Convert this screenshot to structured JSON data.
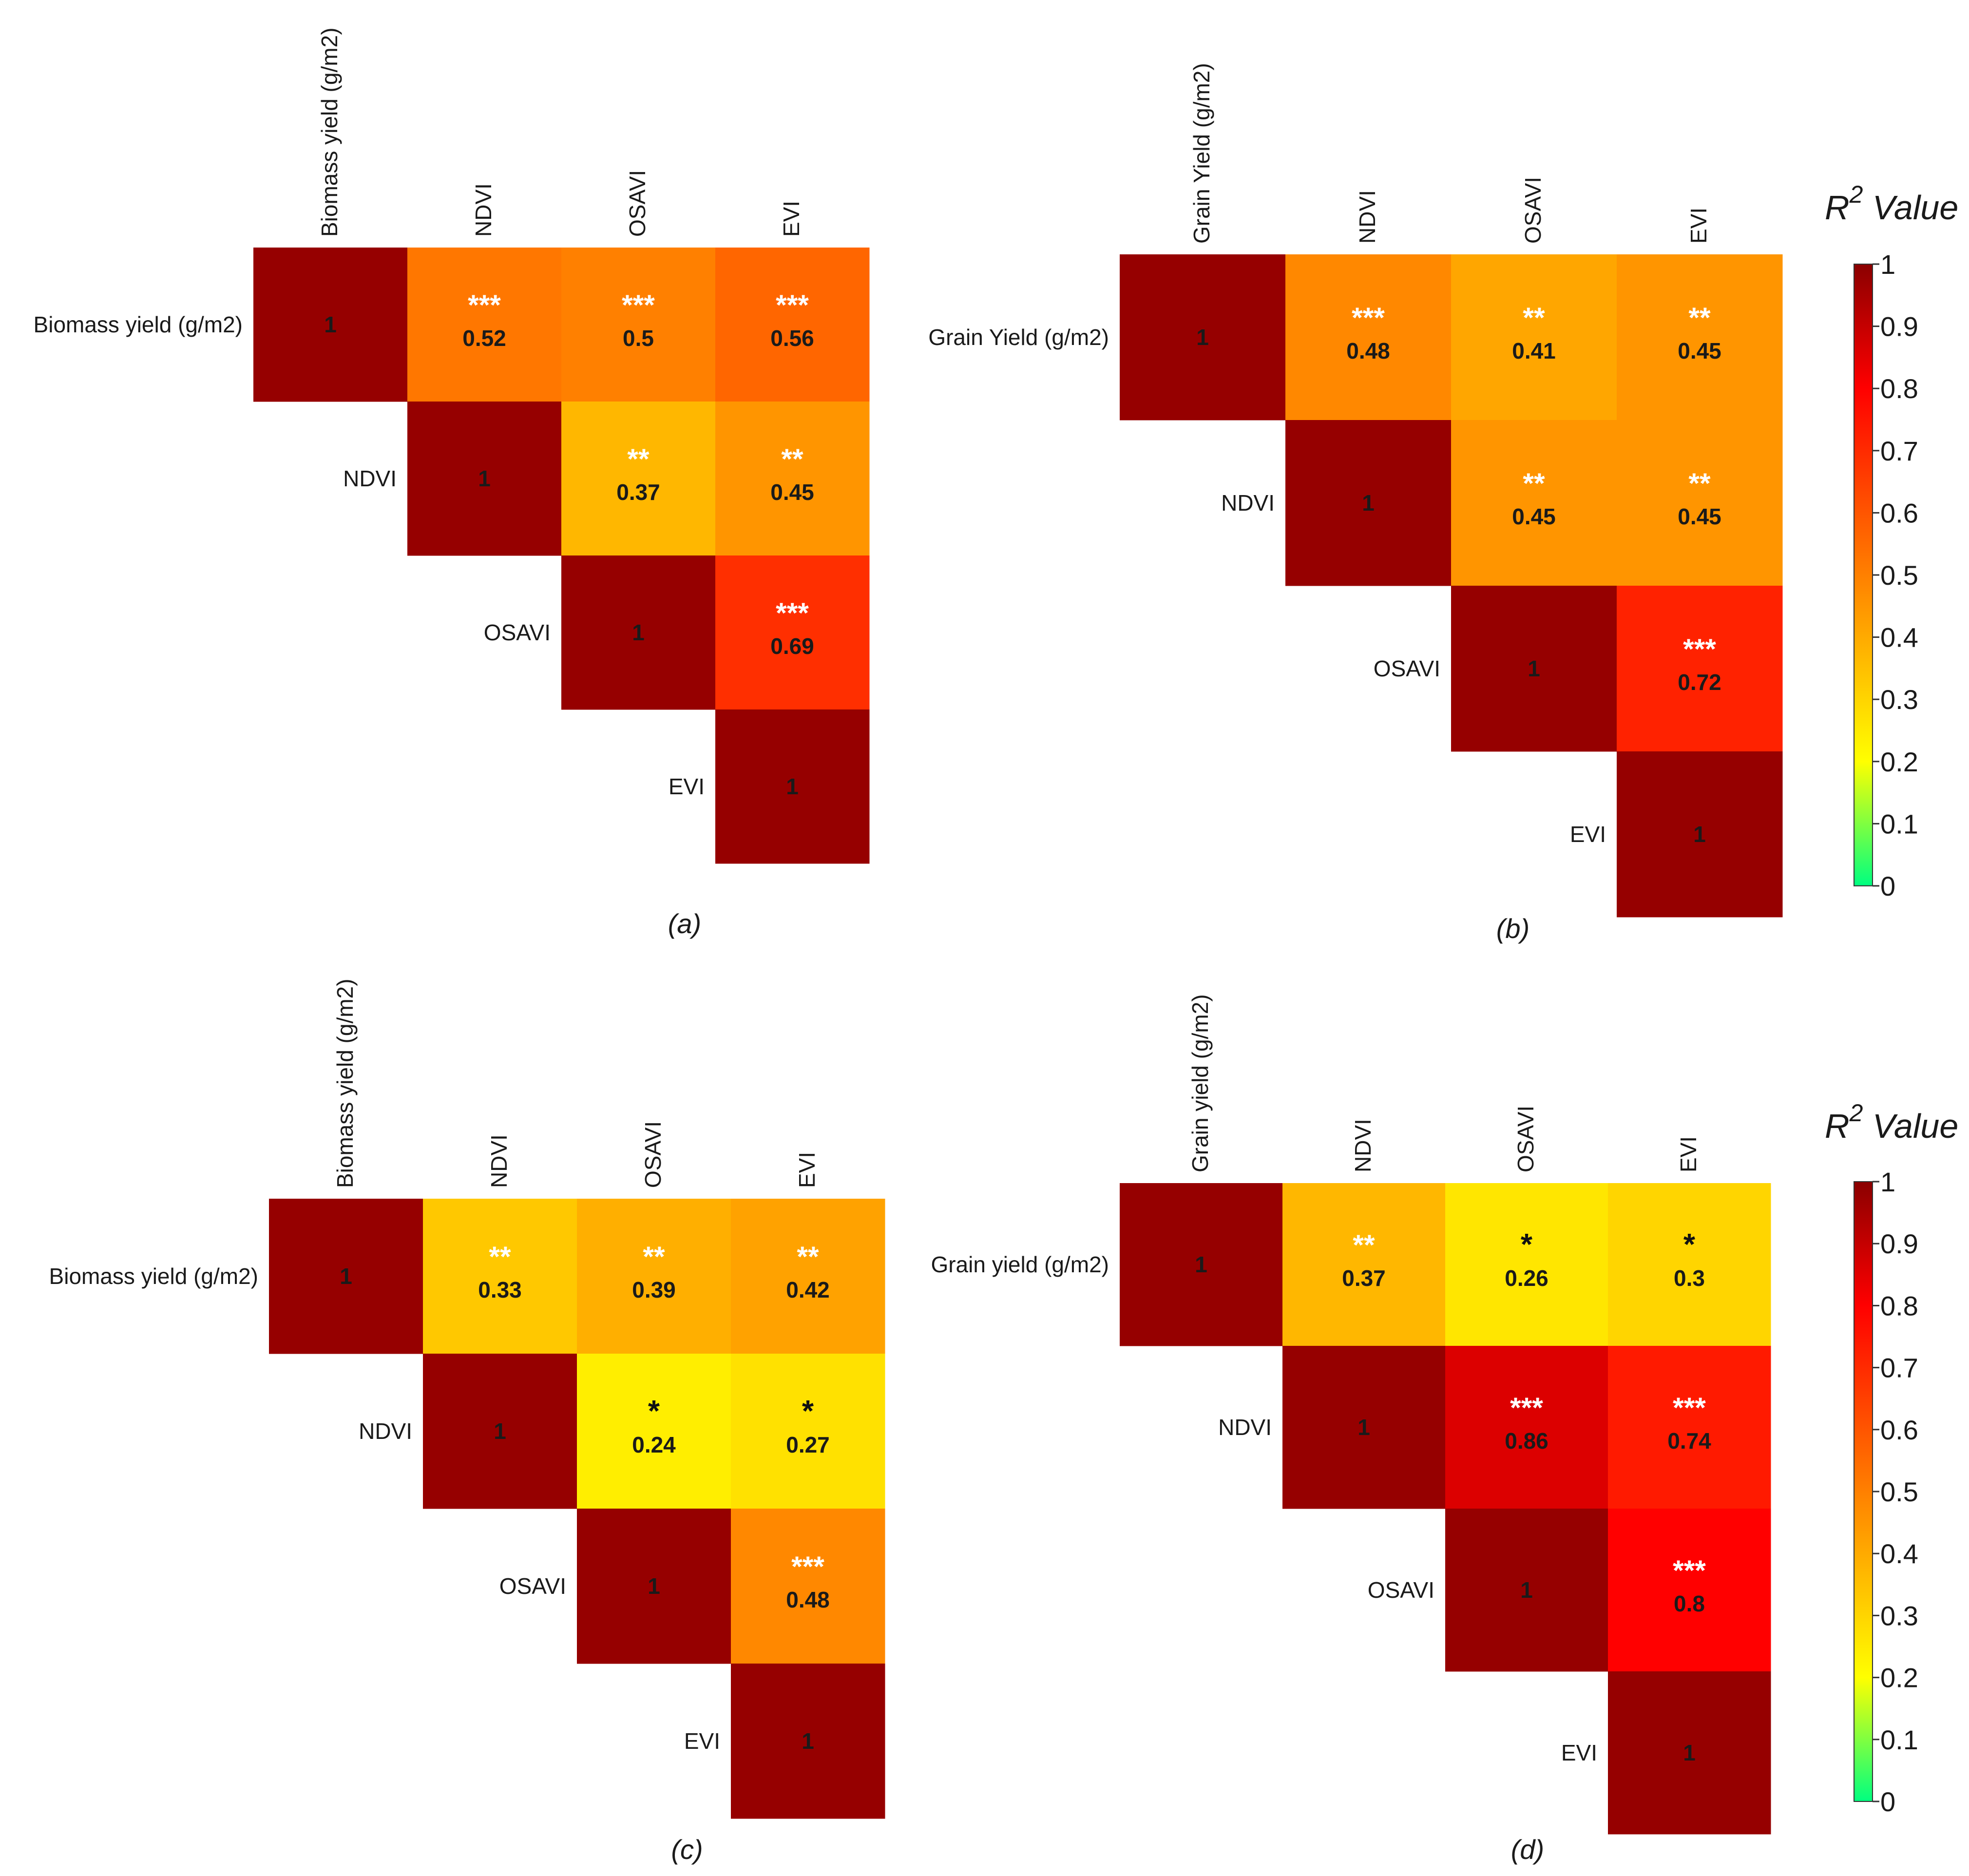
{
  "chart_data": [
    {
      "type": "heatmap",
      "panel_label": "(a)",
      "variables": [
        "Biomass yield (g/m2)",
        "NDVI",
        "OSAVI",
        "EVI"
      ],
      "cells": [
        {
          "row": 0,
          "col": 0,
          "value": 1,
          "value_label": "1",
          "stars": ""
        },
        {
          "row": 0,
          "col": 1,
          "value": 0.52,
          "value_label": "0.52",
          "stars": "***"
        },
        {
          "row": 0,
          "col": 2,
          "value": 0.5,
          "value_label": "0.5",
          "stars": "***"
        },
        {
          "row": 0,
          "col": 3,
          "value": 0.56,
          "value_label": "0.56",
          "stars": "***"
        },
        {
          "row": 1,
          "col": 1,
          "value": 1,
          "value_label": "1",
          "stars": ""
        },
        {
          "row": 1,
          "col": 2,
          "value": 0.37,
          "value_label": "0.37",
          "stars": "**"
        },
        {
          "row": 1,
          "col": 3,
          "value": 0.45,
          "value_label": "0.45",
          "stars": "**"
        },
        {
          "row": 2,
          "col": 2,
          "value": 1,
          "value_label": "1",
          "stars": ""
        },
        {
          "row": 2,
          "col": 3,
          "value": 0.69,
          "value_label": "0.69",
          "stars": "***"
        },
        {
          "row": 3,
          "col": 3,
          "value": 1,
          "value_label": "1",
          "stars": ""
        }
      ]
    },
    {
      "type": "heatmap",
      "panel_label": "(b)",
      "variables": [
        "Grain Yield (g/m2)",
        "NDVI",
        "OSAVI",
        "EVI"
      ],
      "cells": [
        {
          "row": 0,
          "col": 0,
          "value": 1,
          "value_label": "1",
          "stars": ""
        },
        {
          "row": 0,
          "col": 1,
          "value": 0.48,
          "value_label": "0.48",
          "stars": "***"
        },
        {
          "row": 0,
          "col": 2,
          "value": 0.41,
          "value_label": "0.41",
          "stars": "**"
        },
        {
          "row": 0,
          "col": 3,
          "value": 0.45,
          "value_label": "0.45",
          "stars": "**"
        },
        {
          "row": 1,
          "col": 1,
          "value": 1,
          "value_label": "1",
          "stars": ""
        },
        {
          "row": 1,
          "col": 2,
          "value": 0.45,
          "value_label": "0.45",
          "stars": "**"
        },
        {
          "row": 1,
          "col": 3,
          "value": 0.45,
          "value_label": "0.45",
          "stars": "**"
        },
        {
          "row": 2,
          "col": 2,
          "value": 1,
          "value_label": "1",
          "stars": ""
        },
        {
          "row": 2,
          "col": 3,
          "value": 0.72,
          "value_label": "0.72",
          "stars": "***"
        },
        {
          "row": 3,
          "col": 3,
          "value": 1,
          "value_label": "1",
          "stars": ""
        }
      ]
    },
    {
      "type": "heatmap",
      "panel_label": "(c)",
      "variables": [
        "Biomass yield (g/m2)",
        "NDVI",
        "OSAVI",
        "EVI"
      ],
      "cells": [
        {
          "row": 0,
          "col": 0,
          "value": 1,
          "value_label": "1",
          "stars": ""
        },
        {
          "row": 0,
          "col": 1,
          "value": 0.33,
          "value_label": "0.33",
          "stars": "**"
        },
        {
          "row": 0,
          "col": 2,
          "value": 0.39,
          "value_label": "0.39",
          "stars": "**"
        },
        {
          "row": 0,
          "col": 3,
          "value": 0.42,
          "value_label": "0.42",
          "stars": "**"
        },
        {
          "row": 1,
          "col": 1,
          "value": 1,
          "value_label": "1",
          "stars": ""
        },
        {
          "row": 1,
          "col": 2,
          "value": 0.24,
          "value_label": "0.24",
          "stars": "*"
        },
        {
          "row": 1,
          "col": 3,
          "value": 0.27,
          "value_label": "0.27",
          "stars": "*"
        },
        {
          "row": 2,
          "col": 2,
          "value": 1,
          "value_label": "1",
          "stars": ""
        },
        {
          "row": 2,
          "col": 3,
          "value": 0.48,
          "value_label": "0.48",
          "stars": "***"
        },
        {
          "row": 3,
          "col": 3,
          "value": 1,
          "value_label": "1",
          "stars": ""
        }
      ]
    },
    {
      "type": "heatmap",
      "panel_label": "(d)",
      "variables": [
        "Grain yield (g/m2)",
        "NDVI",
        "OSAVI",
        "EVI"
      ],
      "cells": [
        {
          "row": 0,
          "col": 0,
          "value": 1,
          "value_label": "1",
          "stars": ""
        },
        {
          "row": 0,
          "col": 1,
          "value": 0.37,
          "value_label": "0.37",
          "stars": "**"
        },
        {
          "row": 0,
          "col": 2,
          "value": 0.26,
          "value_label": "0.26",
          "stars": "*"
        },
        {
          "row": 0,
          "col": 3,
          "value": 0.3,
          "value_label": "0.3",
          "stars": "*"
        },
        {
          "row": 1,
          "col": 1,
          "value": 1,
          "value_label": "1",
          "stars": ""
        },
        {
          "row": 1,
          "col": 2,
          "value": 0.86,
          "value_label": "0.86",
          "stars": "***"
        },
        {
          "row": 1,
          "col": 3,
          "value": 0.74,
          "value_label": "0.74",
          "stars": "***"
        },
        {
          "row": 2,
          "col": 2,
          "value": 1,
          "value_label": "1",
          "stars": ""
        },
        {
          "row": 2,
          "col": 3,
          "value": 0.8,
          "value_label": "0.8",
          "stars": "***"
        },
        {
          "row": 3,
          "col": 3,
          "value": 1,
          "value_label": "1",
          "stars": ""
        }
      ]
    }
  ],
  "legends": [
    {
      "title_base": "R",
      "title_sup": "2",
      "title_rest": " Value",
      "range": [
        0,
        1
      ],
      "ticks": [
        "0",
        "0.1",
        "0.2",
        "0.3",
        "0.4",
        "0.5",
        "0.6",
        "0.7",
        "0.8",
        "0.9",
        "1"
      ]
    },
    {
      "title_base": "R",
      "title_sup": "2",
      "title_rest": " Value",
      "range": [
        0,
        1
      ],
      "ticks": [
        "0",
        "0.1",
        "0.2",
        "0.3",
        "0.4",
        "0.5",
        "0.6",
        "0.7",
        "0.8",
        "0.9",
        "1"
      ]
    }
  ],
  "colors": {
    "scale_stops": [
      {
        "value": 0,
        "color": "#00ff80"
      },
      {
        "value": 0.2,
        "color": "#ffff00"
      },
      {
        "value": 0.5,
        "color": "#ff8000"
      },
      {
        "value": 0.8,
        "color": "#ff0000"
      },
      {
        "value": 1,
        "color": "#8b0000"
      }
    ],
    "diagonal": "#960000",
    "star_light": "#ffffff",
    "star_dark": "#111111",
    "value_text": "#1a1a1a"
  }
}
